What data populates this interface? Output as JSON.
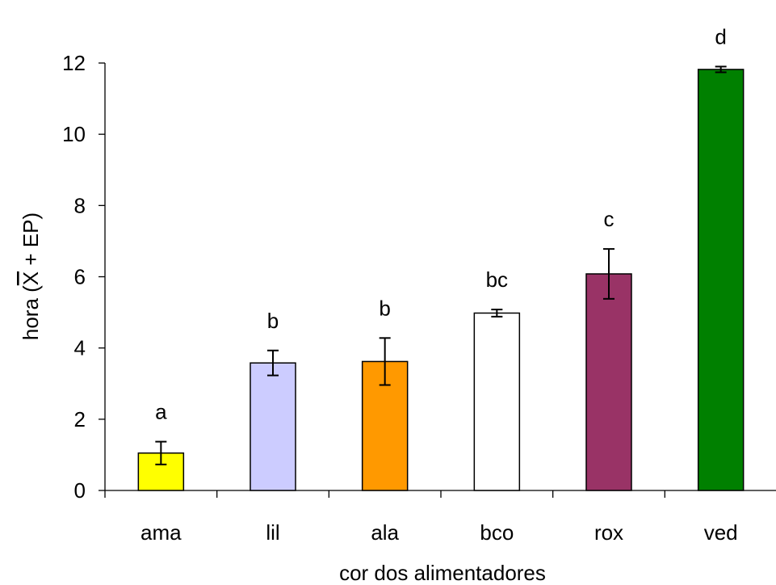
{
  "chart_data": {
    "type": "bar",
    "title": "",
    "xlabel": "cor dos alimentadores",
    "ylabel": "hora (X + EP)",
    "ylim": [
      0,
      12
    ],
    "yticks": [
      0,
      2,
      4,
      6,
      8,
      10,
      12
    ],
    "grid": false,
    "legend": "none",
    "categories": [
      "ama",
      "lil",
      "ala",
      "bco",
      "rox",
      "ved"
    ],
    "values": [
      1.05,
      3.58,
      3.62,
      4.98,
      6.08,
      11.82
    ],
    "errors": [
      0.32,
      0.35,
      0.66,
      0.1,
      0.7,
      0.08
    ],
    "significance": [
      "a",
      "b",
      "b",
      "bc",
      "c",
      "d"
    ],
    "colors": [
      "#ffff00",
      "#ccccff",
      "#ff9900",
      "#ffffff",
      "#993366",
      "#008000"
    ]
  }
}
